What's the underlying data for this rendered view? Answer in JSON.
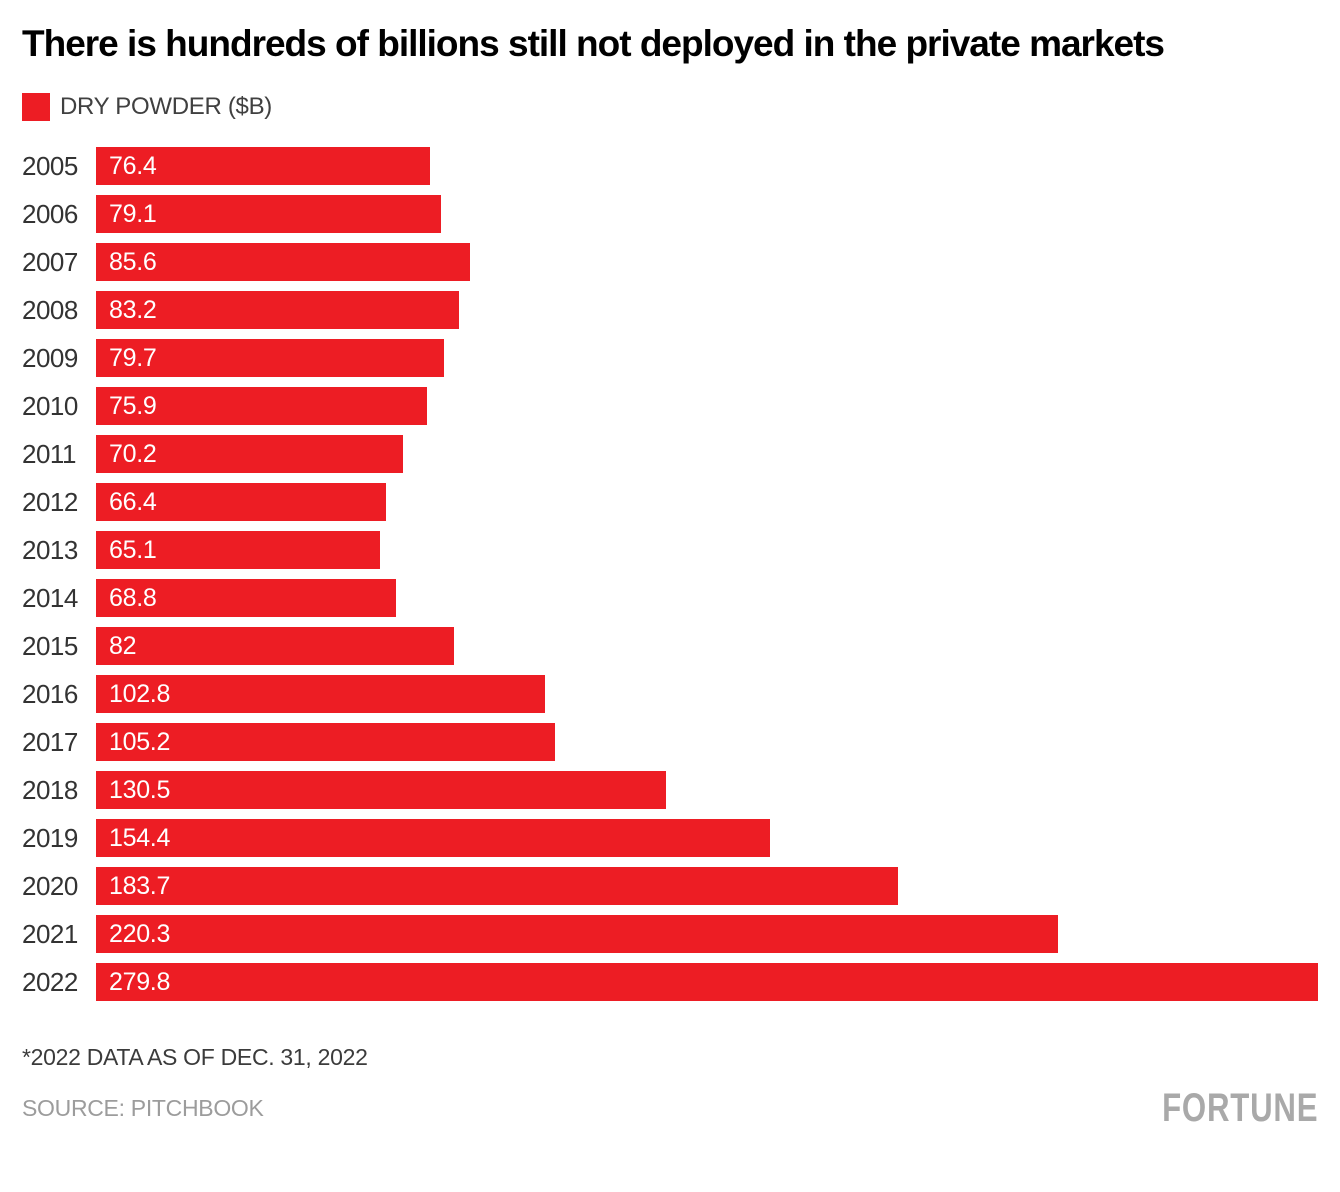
{
  "title": "There is hundreds of billions still not deployed in the private markets",
  "legend": {
    "label": "DRY POWDER ($B)",
    "swatch_color": "#ED1D24"
  },
  "chart_data": {
    "type": "bar",
    "orientation": "horizontal",
    "title": "There is hundreds of billions still not deployed in the private markets",
    "series_label": "DRY POWDER ($B)",
    "categories": [
      "2005",
      "2006",
      "2007",
      "2008",
      "2009",
      "2010",
      "2011",
      "2012",
      "2013",
      "2014",
      "2015",
      "2016",
      "2017",
      "2018",
      "2019",
      "2020",
      "2021",
      "2022"
    ],
    "values": [
      76.4,
      79.1,
      85.6,
      83.2,
      79.7,
      75.9,
      70.2,
      66.4,
      65.1,
      68.8,
      82,
      102.8,
      105.2,
      130.5,
      154.4,
      183.7,
      220.3,
      279.8
    ],
    "value_labels": [
      "76.4",
      "79.1",
      "85.6",
      "83.2",
      "79.7",
      "75.9",
      "70.2",
      "66.4",
      "65.1",
      "68.8",
      "82",
      "102.8",
      "105.2",
      "130.5",
      "154.4",
      "183.7",
      "220.3",
      "279.8"
    ],
    "xlabel": "",
    "ylabel": "",
    "xlim": [
      0,
      280
    ],
    "grid": false,
    "legend_position": "top-left",
    "bar_color": "#ED1D24",
    "value_label_color": "#FFFFFF",
    "category_label_color": "#333333"
  },
  "footnote": "*2022 DATA AS OF DEC. 31, 2022",
  "source": "SOURCE: PITCHBOOK",
  "brand": "FORTUNE",
  "colors": {
    "bar": "#ED1D24",
    "title": "#000000",
    "footnote": "#3B3B3B",
    "source": "#9C9C9C",
    "brand": "#A9A9A9"
  }
}
